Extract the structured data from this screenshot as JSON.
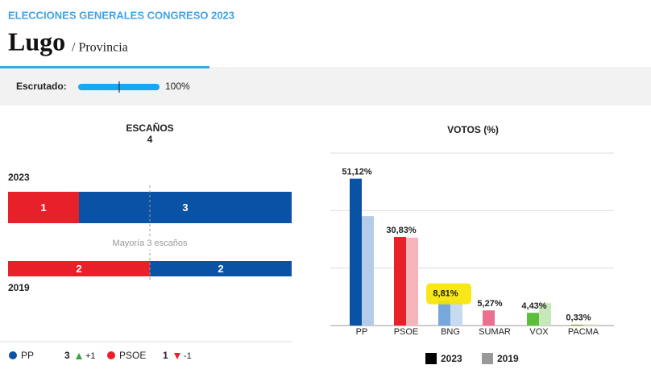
{
  "header": {
    "kicker": "ELECCIONES GENERALES CONGRESO 2023",
    "title": "Lugo",
    "subtitle": "/ Provincia"
  },
  "scrutiny": {
    "label": "Escrutado:",
    "value": 100,
    "value_label": "100%"
  },
  "chart_data": [
    {
      "type": "stacked-hbar",
      "title": "ESCAÑOS",
      "total": 4,
      "annotation": "Mayoría 3 escaños",
      "categories": [
        "2023",
        "2019"
      ],
      "xlim": [
        0,
        4
      ],
      "series": [
        {
          "name": "PP",
          "color": "#0a52a5",
          "values": [
            3,
            2
          ],
          "change": {
            "value": 1,
            "label": "+1"
          }
        },
        {
          "name": "PSOE",
          "color": "#e8202a",
          "values": [
            1,
            2
          ],
          "change": {
            "value": -1,
            "label": "-1"
          }
        }
      ]
    },
    {
      "type": "bar",
      "title": "VOTOS (%)",
      "categories": [
        "PP",
        "PSOE",
        "BNG",
        "SUMAR",
        "VOX",
        "PACMA"
      ],
      "ylim": [
        0,
        60
      ],
      "yticks": [
        0,
        20,
        40,
        60
      ],
      "grid": true,
      "highlight": 2,
      "highlight_color": "#f7e600",
      "series": [
        {
          "name": "2023",
          "color": "#000000",
          "colors": [
            "#0a52a5",
            "#e8202a",
            "#76a8dc",
            "#ec6f90",
            "#5cbf3a",
            "#8fa83a"
          ],
          "values": [
            51.12,
            30.83,
            8.81,
            5.27,
            4.43,
            0.33
          ],
          "value_labels": [
            "51,12%",
            "30,83%",
            "8,81%",
            "5,27%",
            "4,43%",
            "0,33%"
          ]
        },
        {
          "name": "2019",
          "color": "#999999",
          "colors": [
            "#b5cce8",
            "#f6b5b8",
            "#c6dbf0",
            "#f5b7c8",
            "#c7e9b9",
            "#dfe7c2"
          ],
          "values": [
            38.1,
            30.6,
            8.9,
            null,
            7.8,
            0.5
          ]
        }
      ]
    }
  ]
}
